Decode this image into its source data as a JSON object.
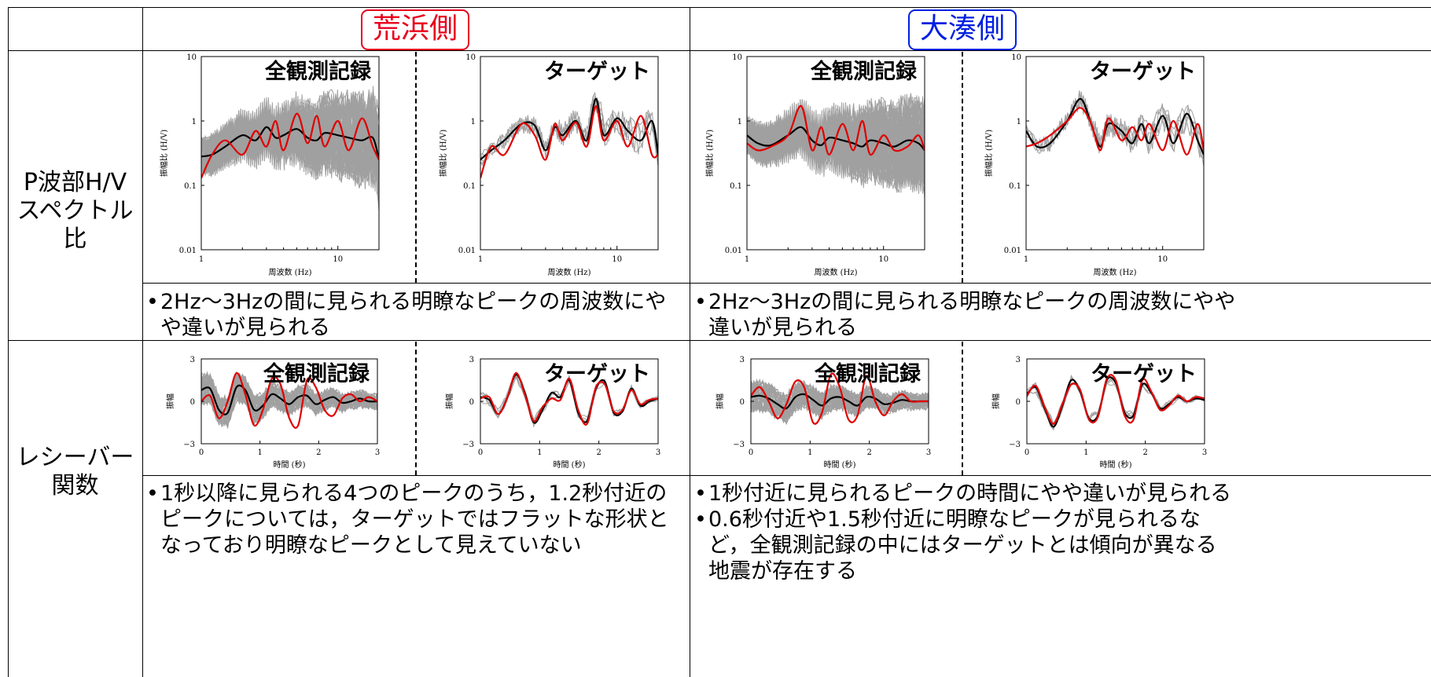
{
  "headers": {
    "arahama": {
      "label": "荒浜側",
      "color": "#e8001c"
    },
    "ominato": {
      "label": "大湊側",
      "color": "#0020e0"
    }
  },
  "row_labels": {
    "hv": [
      "P波部H/V",
      "スペクトル比"
    ],
    "rf": [
      "レシーバー",
      "関数"
    ]
  },
  "panel_titles": {
    "all": "全観測記録",
    "target": "ターゲット"
  },
  "hv_axes": {
    "xlabel": "周波数 (Hz)",
    "ylabel": "振幅比 (H/V)",
    "yticks": [
      "10",
      "1",
      "0.1",
      "0.01"
    ],
    "xticks": [
      "1",
      "10"
    ]
  },
  "rf_axes": {
    "xlabel": "時間 (秒)",
    "ylabel": "振幅",
    "yticks": [
      "3",
      "0",
      "−3"
    ],
    "xticks": [
      "0",
      "1",
      "2",
      "3"
    ]
  },
  "comments": {
    "hv_left": [
      "2Hz～3Hzの間に見られる明瞭なピークの周波数にやや違いが見られる"
    ],
    "hv_right": [
      "2Hz～3Hzの間に見られる明瞭なピークの周波数にやや違いが見られる"
    ],
    "rf_left": [
      "1秒以降に見られる4つのピークのうち，1.2秒付近のピークについては，ターゲットではフラットな形状となっており明瞭なピークとして見えていない"
    ],
    "rf_right": [
      "1秒付近に見られるピークの時間にやや違いが見られる",
      "0.6秒付近や1.5秒付近に明瞭なピークが見られるなど，全観測記録の中にはターゲットとは傾向が異なる地震が存在する"
    ]
  },
  "colors": {
    "gray": "#a0a0a0",
    "black": "#000000",
    "red": "#e00000"
  },
  "chart_data": [
    {
      "id": "hv-arahama-all",
      "type": "line",
      "title": "全観測記録",
      "xlabel": "周波数 (Hz)",
      "ylabel": "振幅比 (H/V)",
      "xscale": "log",
      "yscale": "log",
      "xlim": [
        1,
        20
      ],
      "ylim": [
        0.01,
        10
      ],
      "series": [
        {
          "color": "#000000",
          "x": [
            1,
            1.2,
            1.5,
            2,
            2.5,
            3,
            3.5,
            4,
            5,
            6,
            7,
            8,
            10,
            12,
            15,
            18,
            20
          ],
          "values": [
            0.28,
            0.3,
            0.4,
            0.6,
            0.5,
            0.8,
            0.55,
            0.6,
            0.75,
            0.55,
            0.5,
            0.65,
            0.6,
            0.55,
            0.5,
            0.55,
            0.25
          ]
        },
        {
          "color": "#e00000",
          "x": [
            1,
            1.2,
            1.5,
            2,
            2.5,
            3,
            3.5,
            4,
            5,
            6,
            7,
            8,
            10,
            12,
            15,
            18,
            20
          ],
          "values": [
            0.13,
            0.3,
            0.5,
            0.3,
            0.7,
            0.4,
            1.0,
            0.35,
            1.3,
            0.45,
            1.2,
            0.4,
            1.0,
            0.35,
            1.1,
            0.4,
            0.25
          ]
        }
      ]
    },
    {
      "id": "hv-arahama-target",
      "type": "line",
      "title": "ターゲット",
      "xlabel": "周波数 (Hz)",
      "ylabel": "振幅比 (H/V)",
      "xscale": "log",
      "yscale": "log",
      "xlim": [
        1,
        20
      ],
      "ylim": [
        0.01,
        10
      ],
      "series": [
        {
          "color": "#000000",
          "x": [
            1,
            1.2,
            1.5,
            2,
            2.5,
            3,
            3.5,
            4,
            5,
            6,
            7,
            8,
            10,
            12,
            15,
            18,
            20
          ],
          "values": [
            0.25,
            0.35,
            0.5,
            0.9,
            0.85,
            0.35,
            0.8,
            0.6,
            1.0,
            0.5,
            2.2,
            0.6,
            1.1,
            0.7,
            0.5,
            1.0,
            0.3
          ]
        },
        {
          "color": "#e00000",
          "x": [
            1,
            1.2,
            1.5,
            2,
            2.5,
            3,
            3.5,
            4,
            5,
            6,
            7,
            8,
            10,
            12,
            15,
            18,
            20
          ],
          "values": [
            0.13,
            0.4,
            0.3,
            0.9,
            0.6,
            0.25,
            0.9,
            0.5,
            0.95,
            0.4,
            1.7,
            0.5,
            1.0,
            0.4,
            1.2,
            0.3,
            0.3
          ]
        }
      ]
    },
    {
      "id": "hv-ominato-all",
      "type": "line",
      "title": "全観測記録",
      "xlabel": "周波数 (Hz)",
      "ylabel": "振幅比 (H/V)",
      "xscale": "log",
      "yscale": "log",
      "xlim": [
        1,
        20
      ],
      "ylim": [
        0.01,
        10
      ],
      "series": [
        {
          "color": "#000000",
          "x": [
            1,
            1.2,
            1.5,
            2,
            2.5,
            3,
            3.5,
            4,
            5,
            6,
            7,
            8,
            10,
            12,
            15,
            18,
            20
          ],
          "values": [
            0.6,
            0.45,
            0.42,
            0.6,
            0.8,
            0.5,
            0.42,
            0.55,
            0.5,
            0.45,
            0.4,
            0.5,
            0.45,
            0.4,
            0.5,
            0.45,
            0.35
          ]
        },
        {
          "color": "#e00000",
          "x": [
            1,
            1.2,
            1.5,
            2,
            2.5,
            3,
            3.5,
            4,
            5,
            6,
            7,
            8,
            10,
            12,
            15,
            18,
            20
          ],
          "values": [
            0.45,
            0.35,
            0.4,
            0.6,
            1.7,
            0.35,
            0.8,
            0.3,
            0.9,
            0.35,
            1.0,
            0.3,
            0.6,
            0.35,
            0.4,
            0.6,
            0.35
          ]
        }
      ]
    },
    {
      "id": "hv-ominato-target",
      "type": "line",
      "title": "ターゲット",
      "xlabel": "周波数 (Hz)",
      "ylabel": "振幅比 (H/V)",
      "xscale": "log",
      "yscale": "log",
      "xlim": [
        1,
        20
      ],
      "ylim": [
        0.01,
        10
      ],
      "series": [
        {
          "color": "#000000",
          "x": [
            1,
            1.2,
            1.5,
            2,
            2.5,
            3,
            3.5,
            4,
            5,
            6,
            7,
            8,
            10,
            12,
            15,
            18,
            20
          ],
          "values": [
            0.7,
            0.4,
            0.45,
            1.0,
            2.2,
            0.9,
            0.4,
            0.9,
            0.7,
            0.45,
            0.9,
            0.45,
            1.2,
            0.45,
            1.3,
            0.5,
            0.3
          ]
        },
        {
          "color": "#e00000",
          "x": [
            1,
            1.2,
            1.5,
            2,
            2.5,
            3,
            3.5,
            4,
            5,
            6,
            7,
            8,
            10,
            12,
            15,
            18,
            20
          ],
          "values": [
            0.4,
            0.45,
            0.6,
            1.0,
            1.6,
            0.9,
            0.35,
            1.1,
            0.5,
            0.8,
            0.5,
            0.9,
            0.35,
            1.0,
            0.3,
            0.9,
            0.35
          ]
        }
      ]
    },
    {
      "id": "rf-arahama-all",
      "type": "line",
      "title": "全観測記録",
      "xlabel": "時間 (秒)",
      "ylabel": "振幅",
      "xlim": [
        0,
        3
      ],
      "ylim": [
        -3,
        3
      ],
      "series": [
        {
          "color": "#000000",
          "x": [
            0,
            0.15,
            0.3,
            0.45,
            0.6,
            0.75,
            0.9,
            1.05,
            1.2,
            1.35,
            1.5,
            1.65,
            1.8,
            1.95,
            2.1,
            2.25,
            2.4,
            2.55,
            2.7,
            2.85,
            3.0
          ],
          "values": [
            0.8,
            0.9,
            -0.6,
            -0.8,
            1.0,
            0.8,
            -0.6,
            -0.3,
            0.5,
            0.2,
            -0.2,
            0.3,
            0.4,
            -0.2,
            0.1,
            0.3,
            -0.1,
            0.0,
            0.2,
            0.0,
            0.0
          ]
        },
        {
          "color": "#e00000",
          "x": [
            0,
            0.15,
            0.3,
            0.45,
            0.6,
            0.75,
            0.9,
            1.05,
            1.2,
            1.35,
            1.5,
            1.65,
            1.8,
            1.95,
            2.1,
            2.25,
            2.4,
            2.55,
            2.7,
            2.85,
            3.0
          ],
          "values": [
            0.0,
            0.4,
            -1.2,
            0.0,
            2.0,
            0.5,
            -1.7,
            -0.6,
            1.6,
            1.2,
            -1.2,
            -1.7,
            1.5,
            1.0,
            -0.6,
            -1.0,
            0.2,
            0.5,
            0.0,
            0.3,
            0.0
          ]
        }
      ]
    },
    {
      "id": "rf-arahama-target",
      "type": "line",
      "title": "ターゲット",
      "xlabel": "時間 (秒)",
      "ylabel": "振幅",
      "xlim": [
        0,
        3
      ],
      "ylim": [
        -3,
        3
      ],
      "series": [
        {
          "color": "#000000",
          "x": [
            0,
            0.15,
            0.3,
            0.45,
            0.6,
            0.75,
            0.9,
            1.05,
            1.2,
            1.35,
            1.5,
            1.65,
            1.8,
            1.95,
            2.1,
            2.25,
            2.4,
            2.55,
            2.7,
            2.85,
            3.0
          ],
          "values": [
            0.3,
            0.1,
            -0.9,
            0.2,
            1.9,
            0.6,
            -1.5,
            -0.6,
            0.6,
            0.3,
            1.5,
            -0.8,
            -1.4,
            0.9,
            1.4,
            -0.8,
            -0.7,
            0.9,
            -0.3,
            0.0,
            0.2
          ]
        },
        {
          "color": "#e00000",
          "x": [
            0,
            0.15,
            0.3,
            0.45,
            0.6,
            0.75,
            0.9,
            1.05,
            1.2,
            1.35,
            1.5,
            1.65,
            1.8,
            1.95,
            2.1,
            2.25,
            2.4,
            2.55,
            2.7,
            2.85,
            3.0
          ],
          "values": [
            0.2,
            0.3,
            -0.9,
            0.2,
            2.0,
            0.5,
            -1.4,
            -0.4,
            0.2,
            0.1,
            1.6,
            -0.6,
            -1.6,
            1.0,
            1.2,
            -0.7,
            -0.6,
            0.8,
            -0.2,
            0.1,
            0.2
          ]
        }
      ]
    },
    {
      "id": "rf-ominato-all",
      "type": "line",
      "title": "全観測記録",
      "xlabel": "時間 (秒)",
      "ylabel": "振幅",
      "xlim": [
        0,
        3
      ],
      "ylim": [
        -3,
        3
      ],
      "series": [
        {
          "color": "#000000",
          "x": [
            0,
            0.15,
            0.3,
            0.45,
            0.6,
            0.75,
            0.9,
            1.05,
            1.2,
            1.35,
            1.5,
            1.65,
            1.8,
            1.95,
            2.1,
            2.25,
            2.4,
            2.55,
            2.7,
            2.85,
            3.0
          ],
          "values": [
            0.3,
            0.4,
            0.2,
            -0.2,
            -0.5,
            0.3,
            0.5,
            0.1,
            -0.3,
            0.2,
            0.3,
            0.0,
            -0.3,
            0.3,
            0.2,
            -0.2,
            -0.1,
            0.1,
            0.0,
            0.0,
            0.0
          ]
        },
        {
          "color": "#e00000",
          "x": [
            0,
            0.15,
            0.3,
            0.45,
            0.6,
            0.75,
            0.9,
            1.05,
            1.2,
            1.35,
            1.5,
            1.65,
            1.8,
            1.95,
            2.1,
            2.25,
            2.4,
            2.55,
            2.7,
            2.85,
            3.0
          ],
          "values": [
            0.4,
            1.0,
            0.0,
            -1.2,
            -0.2,
            1.4,
            1.0,
            -1.5,
            -0.8,
            1.9,
            1.0,
            -1.3,
            -1.0,
            1.8,
            0.0,
            -1.0,
            0.0,
            0.5,
            0.0,
            0.0,
            0.0
          ]
        }
      ]
    },
    {
      "id": "rf-ominato-target",
      "type": "line",
      "title": "ターゲット",
      "xlabel": "時間 (秒)",
      "ylabel": "振幅",
      "xlim": [
        0,
        3
      ],
      "ylim": [
        -3,
        3
      ],
      "series": [
        {
          "color": "#000000",
          "x": [
            0,
            0.15,
            0.3,
            0.45,
            0.6,
            0.75,
            0.9,
            1.05,
            1.2,
            1.35,
            1.5,
            1.65,
            1.8,
            1.95,
            2.1,
            2.25,
            2.4,
            2.55,
            2.7,
            2.85,
            3.0
          ],
          "values": [
            0.5,
            1.0,
            -0.5,
            -1.8,
            -0.3,
            1.5,
            0.7,
            -1.2,
            -1.0,
            1.5,
            1.3,
            -0.8,
            -1.0,
            1.2,
            0.6,
            -0.5,
            -0.2,
            0.3,
            0.0,
            0.2,
            0.1
          ]
        },
        {
          "color": "#e00000",
          "x": [
            0,
            0.15,
            0.3,
            0.45,
            0.6,
            0.75,
            0.9,
            1.05,
            1.2,
            1.35,
            1.5,
            1.65,
            1.8,
            1.95,
            2.1,
            2.25,
            2.4,
            2.55,
            2.7,
            2.85,
            3.0
          ],
          "values": [
            0.4,
            1.1,
            -0.4,
            -1.6,
            -0.2,
            1.2,
            0.8,
            -1.3,
            -1.1,
            1.6,
            1.5,
            -1.0,
            -1.3,
            1.5,
            0.7,
            -0.6,
            -0.3,
            0.4,
            0.0,
            0.3,
            0.2
          ]
        }
      ]
    }
  ]
}
